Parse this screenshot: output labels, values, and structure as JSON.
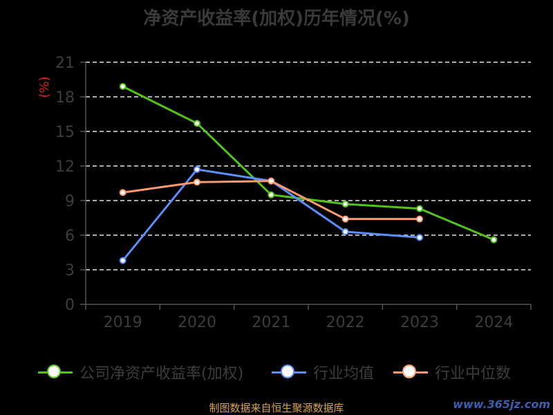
{
  "title": "净资产收益率(加权)历年情况(%)",
  "source": "制图数据来自恒生聚源数据库",
  "watermark": "www.365jz.com",
  "chart_data": {
    "type": "line",
    "ylabel": "(%)",
    "ylim": [
      0,
      21
    ],
    "yticks": [
      0,
      3,
      6,
      9,
      12,
      15,
      18,
      21
    ],
    "grid": true,
    "legend_position": "bottom",
    "categories": [
      "2019",
      "2020",
      "2021",
      "2022",
      "2023",
      "2024"
    ],
    "series": [
      {
        "name": "公司净资产收益率(加权)",
        "color": "#52c41a",
        "values": [
          18.9,
          15.7,
          9.5,
          8.7,
          8.3,
          5.6
        ]
      },
      {
        "name": "行业均值",
        "color": "#5b8ff9",
        "values": [
          3.8,
          11.7,
          10.7,
          6.3,
          5.8,
          null
        ]
      },
      {
        "name": "行业中位数",
        "color": "#ff9a6e",
        "values": [
          9.7,
          10.6,
          10.7,
          7.4,
          7.4,
          null
        ]
      }
    ]
  }
}
